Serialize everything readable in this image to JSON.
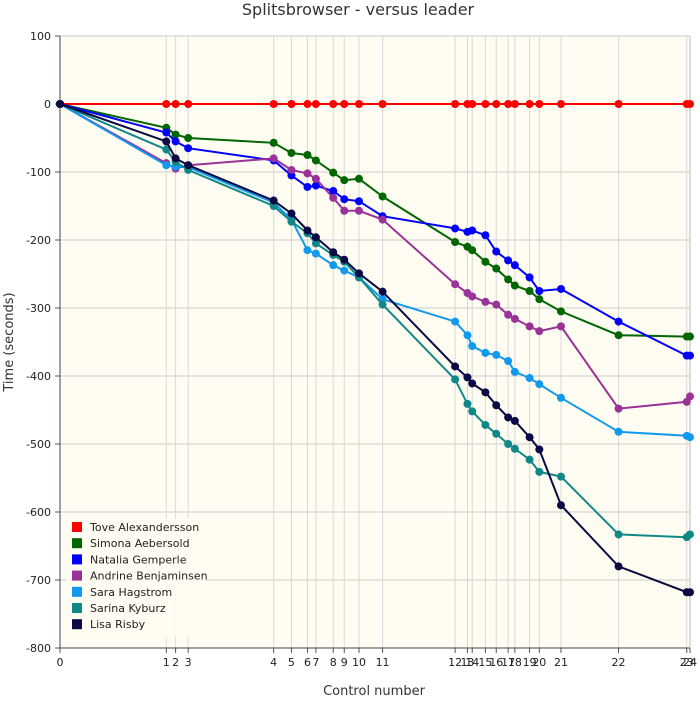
{
  "chart_data": {
    "type": "line",
    "title": "Splitsbrowser - versus leader",
    "xlabel": "Control number",
    "ylabel": "Time (seconds)",
    "ylim": [
      -800,
      100
    ],
    "yticks": [
      100,
      0,
      -100,
      -200,
      -300,
      -400,
      -500,
      -600,
      -700,
      -800
    ],
    "xlim": [
      0,
      2910
    ],
    "xtick_labels": [
      "0",
      "1",
      "2",
      "3",
      "4",
      "5",
      "6",
      "7",
      "8",
      "9",
      "10",
      "11",
      "12",
      "13",
      "14",
      "15",
      "16",
      "17",
      "18",
      "19",
      "20",
      "21",
      "22",
      "23",
      "24"
    ],
    "x": [
      0,
      491,
      534,
      592,
      987,
      1069,
      1143,
      1182,
      1262,
      1313,
      1381,
      1490,
      1825,
      1882,
      1904,
      1965,
      2015,
      2070,
      2101,
      2169,
      2214,
      2314,
      2580,
      2895,
      2910
    ],
    "series": [
      {
        "name": "Tove Alexandersson",
        "color": "#ff0000",
        "values": [
          0,
          0,
          0,
          0,
          0,
          0,
          0,
          0,
          0,
          0,
          0,
          0,
          0,
          0,
          0,
          0,
          0,
          0,
          0,
          0,
          0,
          0,
          0,
          0,
          0
        ]
      },
      {
        "name": "Simona Aebersold",
        "color": "#006600",
        "values": [
          0,
          -35,
          -45,
          -50,
          -57,
          -72,
          -75,
          -83,
          -101,
          -112,
          -110,
          -136,
          -203,
          -210,
          -215,
          -232,
          -242,
          -258,
          -267,
          -275,
          -287,
          -305,
          -340,
          -342,
          -342
        ]
      },
      {
        "name": "Natalia Gemperle",
        "color": "#0000ff",
        "values": [
          0,
          -42,
          -55,
          -65,
          -83,
          -105,
          -122,
          -120,
          -128,
          -140,
          -143,
          -165,
          -183,
          -188,
          -186,
          -193,
          -217,
          -230,
          -237,
          -255,
          -275,
          -272,
          -320,
          -370,
          -370
        ]
      },
      {
        "name": "Andrine Benjaminsen",
        "color": "#993399",
        "values": [
          0,
          -87,
          -95,
          -90,
          -80,
          -97,
          -102,
          -110,
          -138,
          -157,
          -157,
          -170,
          -265,
          -278,
          -283,
          -291,
          -295,
          -310,
          -316,
          -327,
          -334,
          -327,
          -448,
          -438,
          -430
        ]
      },
      {
        "name": "Sara Hagstrom",
        "color": "#1199ee",
        "values": [
          0,
          -90,
          -92,
          -93,
          -145,
          -170,
          -215,
          -220,
          -237,
          -245,
          -255,
          -287,
          -320,
          -340,
          -356,
          -366,
          -369,
          -378,
          -394,
          -403,
          -412,
          -432,
          -482,
          -488,
          -490
        ]
      },
      {
        "name": "Sarina Kyburz",
        "color": "#118888",
        "values": [
          0,
          -67,
          -85,
          -97,
          -150,
          -173,
          -190,
          -205,
          -222,
          -232,
          -255,
          -295,
          -405,
          -441,
          -452,
          -472,
          -485,
          -500,
          -507,
          -523,
          -541,
          -548,
          -633,
          -637,
          -633
        ]
      },
      {
        "name": "Lisa Risby",
        "color": "#0a0a44",
        "values": [
          0,
          -55,
          -80,
          -90,
          -142,
          -161,
          -186,
          -196,
          -218,
          -229,
          -249,
          -276,
          -386,
          -402,
          -411,
          -424,
          -443,
          -461,
          -466,
          -490,
          -508,
          -590,
          -680,
          -718,
          -718
        ]
      }
    ],
    "grid": true,
    "legend_position": "bottom-left"
  }
}
